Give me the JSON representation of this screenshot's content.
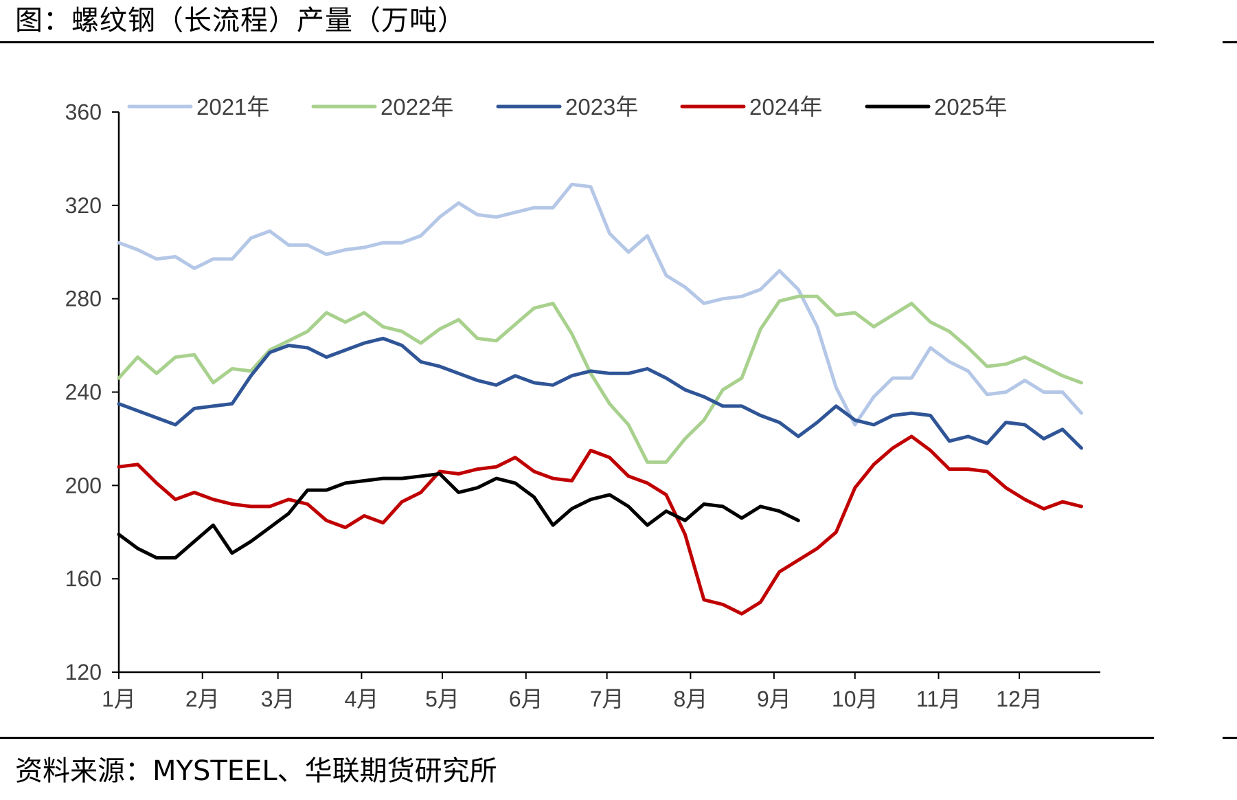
{
  "figure": {
    "title": "图：螺纹钢（长流程）产量（万吨）",
    "source": "资料来源：MYSTEEL、华联期货研究所"
  },
  "chart_data": {
    "type": "line",
    "title": "螺纹钢（长流程）产量（万吨）",
    "xlabel": "",
    "ylabel": "",
    "ylim": [
      120,
      360
    ],
    "yticks": [
      120,
      160,
      200,
      240,
      280,
      320,
      360
    ],
    "xlim": [
      0,
      52
    ],
    "month_ticks": [
      {
        "label": "1月",
        "week": 0
      },
      {
        "label": "2月",
        "week": 4.43
      },
      {
        "label": "3月",
        "week": 8.43
      },
      {
        "label": "4月",
        "week": 12.86
      },
      {
        "label": "5月",
        "week": 17.14
      },
      {
        "label": "6月",
        "week": 21.57
      },
      {
        "label": "7月",
        "week": 25.86
      },
      {
        "label": "8月",
        "week": 30.29
      },
      {
        "label": "9月",
        "week": 34.71
      },
      {
        "label": "10月",
        "week": 39
      },
      {
        "label": "11月",
        "week": 43.43
      },
      {
        "label": "12月",
        "week": 47.71
      }
    ],
    "legend_position": "top",
    "grid": false,
    "series": [
      {
        "name": "2021年",
        "color": "#B4C7E7",
        "values": [
          304,
          301,
          297,
          298,
          293,
          297,
          297,
          306,
          309,
          303,
          303,
          299,
          301,
          302,
          304,
          304,
          307,
          315,
          321,
          316,
          315,
          317,
          319,
          319,
          329,
          328,
          308,
          300,
          307,
          290,
          285,
          278,
          280,
          281,
          284,
          292,
          284,
          268,
          242,
          226,
          238,
          246,
          246,
          259,
          253,
          249,
          239,
          240,
          245,
          240,
          240,
          231
        ]
      },
      {
        "name": "2022年",
        "color": "#A9D18E",
        "values": [
          246,
          255,
          248,
          255,
          256,
          244,
          250,
          249,
          258,
          262,
          266,
          274,
          270,
          274,
          268,
          266,
          261,
          267,
          271,
          263,
          262,
          269,
          276,
          278,
          265,
          248,
          235,
          226,
          210,
          210,
          220,
          228,
          241,
          246,
          267,
          279,
          281,
          281,
          273,
          274,
          268,
          273,
          278,
          270,
          266,
          259,
          251,
          252,
          255,
          251,
          247,
          244
        ]
      },
      {
        "name": "2023年",
        "color": "#2F5597",
        "values": [
          235,
          232,
          229,
          226,
          233,
          234,
          235,
          247,
          257,
          260,
          259,
          255,
          258,
          261,
          263,
          260,
          253,
          251,
          248,
          245,
          243,
          247,
          244,
          243,
          247,
          249,
          248,
          248,
          250,
          246,
          241,
          238,
          234,
          234,
          230,
          227,
          221,
          227,
          234,
          228,
          226,
          230,
          231,
          230,
          219,
          221,
          218,
          227,
          226,
          220,
          224,
          216
        ]
      },
      {
        "name": "2024年",
        "color": "#C00000",
        "values": [
          208,
          209,
          201,
          194,
          197,
          194,
          192,
          191,
          191,
          194,
          192,
          185,
          182,
          187,
          184,
          193,
          197,
          206,
          205,
          207,
          208,
          212,
          206,
          203,
          202,
          215,
          212,
          204,
          201,
          196,
          179,
          151,
          149,
          145,
          150,
          163,
          168,
          173,
          180,
          199,
          209,
          216,
          221,
          215,
          207,
          207,
          206,
          199,
          194,
          190,
          193,
          191
        ]
      },
      {
        "name": "2025年",
        "color": "#000000",
        "values": [
          179,
          173,
          169,
          169,
          176,
          183,
          171,
          176,
          182,
          188,
          198,
          198,
          201,
          202,
          203,
          203,
          204,
          205,
          197,
          199,
          203,
          201,
          195,
          183,
          190,
          194,
          196,
          191,
          183,
          189,
          185,
          192,
          191,
          186,
          191,
          189,
          185
        ]
      }
    ]
  }
}
